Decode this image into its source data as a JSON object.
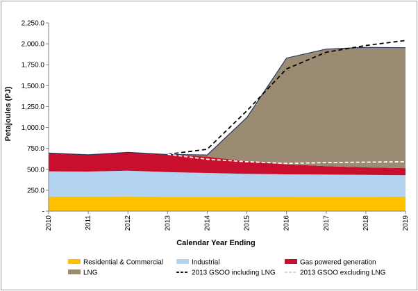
{
  "chart_data": {
    "type": "area",
    "xlabel": "Calendar Year Ending",
    "ylabel": "Petajoules (PJ)",
    "ylim": [
      0,
      2250
    ],
    "y_ticks": [
      "-",
      "250.0",
      "500.0",
      "750.0",
      "1,000.0",
      "1,250.0",
      "1,500.0",
      "1,750.0",
      "2,000.0",
      "2,250.0"
    ],
    "y_tick_values": [
      0,
      250,
      500,
      750,
      1000,
      1250,
      1500,
      1750,
      2000,
      2250
    ],
    "categories": [
      "2010",
      "2011",
      "2012",
      "2013",
      "2014",
      "2015",
      "2016",
      "2017",
      "2018",
      "2019"
    ],
    "stacked": true,
    "grid": false,
    "legend_position": "bottom",
    "series": [
      {
        "name": "Residential & Commercial",
        "color": "#ffc000",
        "kind": "area",
        "values": [
          175,
          175,
          178,
          172,
          172,
          170,
          170,
          172,
          173,
          174
        ]
      },
      {
        "name": "Industrial",
        "color": "#b3d4f0",
        "kind": "area",
        "values": [
          300,
          298,
          305,
          295,
          285,
          275,
          270,
          265,
          260,
          255
        ]
      },
      {
        "name": "Gas powered generation",
        "color": "#c8102e",
        "kind": "area",
        "values": [
          220,
          200,
          220,
          210,
          195,
          150,
          120,
          100,
          90,
          85
        ]
      },
      {
        "name": "LNG",
        "color": "#9c8b73",
        "kind": "area",
        "values": [
          0,
          0,
          0,
          0,
          20,
          525,
          1270,
          1400,
          1435,
          1440
        ]
      },
      {
        "name": "2013 GSOO including LNG",
        "color": "#000000",
        "kind": "line",
        "dash": "6,4",
        "values": [
          null,
          null,
          null,
          680,
          740,
          1200,
          1700,
          1900,
          1980,
          2040
        ]
      },
      {
        "name": "2013 GSOO excluding LNG",
        "color": "#ffffff",
        "kind": "line",
        "dash": "5,3",
        "values": [
          null,
          null,
          null,
          680,
          620,
          590,
          570,
          580,
          585,
          590
        ]
      }
    ]
  }
}
